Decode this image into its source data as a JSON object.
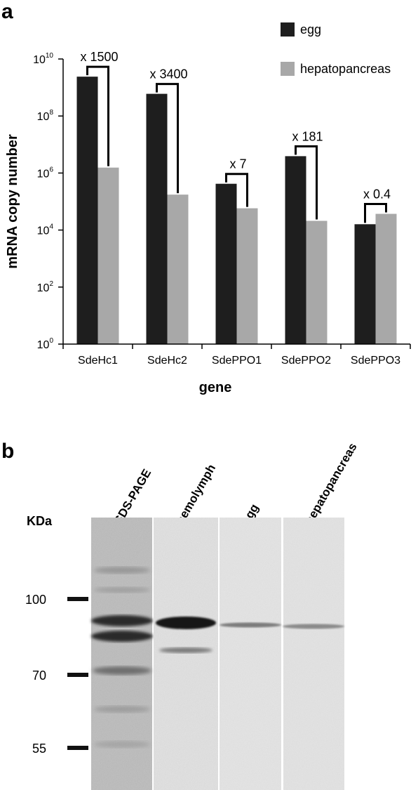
{
  "panel_a_label": "a",
  "panel_b_label": "b",
  "colors": {
    "egg": "#1e1e1e",
    "hepatopancreas": "#a8a8a8"
  },
  "chart_data": {
    "type": "bar",
    "title": "",
    "xlabel": "gene",
    "ylabel": "mRNA copy number",
    "yscale": "log",
    "ylim": [
      1,
      10000000000
    ],
    "yticks": [
      {
        "value": 1,
        "base": "10",
        "exp": "0"
      },
      {
        "value": 100,
        "base": "10",
        "exp": "2"
      },
      {
        "value": 10000,
        "base": "10",
        "exp": "4"
      },
      {
        "value": 1000000,
        "base": "10",
        "exp": "6"
      },
      {
        "value": 100000000,
        "base": "10",
        "exp": "8"
      },
      {
        "value": 10000000000,
        "base": "10",
        "exp": "10"
      }
    ],
    "categories": [
      "SdeHc1",
      "SdeHc2",
      "SdePPO1",
      "SdePPO2",
      "SdePPO3"
    ],
    "series": [
      {
        "name": "egg",
        "values": [
          2400000000,
          600000000,
          420000,
          3900000,
          16000
        ]
      },
      {
        "name": "hepatopancreas",
        "values": [
          1550000,
          175000,
          58000,
          21000,
          37000
        ]
      }
    ],
    "fold_labels": [
      "x 1500",
      "x 3400",
      "x 7",
      "x 181",
      "x 0.4"
    ],
    "legend_position": "top-right",
    "grid": false
  },
  "blot": {
    "unit_label": "KDa",
    "lanes": [
      "SDS-PAGE",
      "hemolymph",
      "egg",
      "hepatopancreas"
    ],
    "markers": [
      {
        "label": "100",
        "kda": 100
      },
      {
        "label": "70",
        "kda": 70
      },
      {
        "label": "55",
        "kda": 55
      }
    ]
  }
}
